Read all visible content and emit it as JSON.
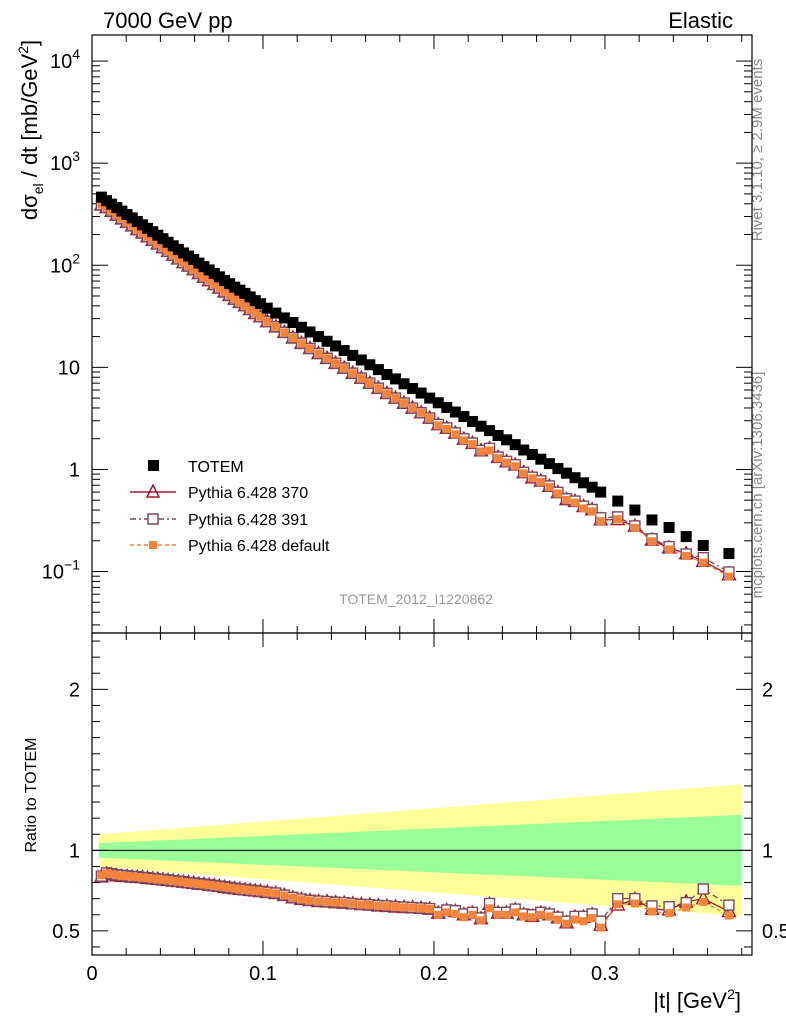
{
  "header": {
    "left": "7000 GeV pp",
    "right": "Elastic"
  },
  "side_labels": {
    "top": "Rivet 3.1.10, ≥ 2.9M events",
    "bottom": "mcplots.cern.ch [arXiv:1306.3436]"
  },
  "watermark": "TOTEM_2012_I1220862",
  "main_ylabel": {
    "prefix": "dσ",
    "sub": "el",
    "mid": " / dt [mb/GeV",
    "sup": "2",
    "end": "]"
  },
  "ratio_ylabel": "Ratio to TOTEM",
  "xlabel": {
    "main": "|t| [GeV",
    "sup": "2",
    "end": "]"
  },
  "legend": {
    "totem": "TOTEM",
    "p370": "Pythia 6.428 370",
    "p391": "Pythia 6.428 391",
    "pdef": "Pythia 6.428 default"
  },
  "colors": {
    "totem": "#000000",
    "p370": "#9b1b30",
    "p391": "#7b4a5e",
    "pdef": "#f4843c",
    "band_inner": "#99ff99",
    "band_outer": "#ffff99"
  },
  "chart_data": [
    {
      "type": "scatter",
      "yscale": "log",
      "xlim": [
        0,
        0.386
      ],
      "ylim": [
        0.025,
        18000
      ],
      "xlabel": "|t| [GeV2]",
      "ylabel": "dσel / dt [mb/GeV2]",
      "y_ticks": [
        "10^4",
        "10^3",
        "10^2",
        "10",
        "1",
        "10^-1"
      ],
      "series": [
        {
          "name": "TOTEM",
          "x": [
            0.0055,
            0.0085,
            0.0115,
            0.0145,
            0.0175,
            0.0205,
            0.0235,
            0.0265,
            0.0295,
            0.0325,
            0.0355,
            0.0385,
            0.0415,
            0.0445,
            0.0475,
            0.0505,
            0.0535,
            0.0565,
            0.0595,
            0.0625,
            0.0655,
            0.0685,
            0.0715,
            0.0745,
            0.0775,
            0.0805,
            0.0835,
            0.0865,
            0.0895,
            0.0925,
            0.0955,
            0.0985,
            0.1025,
            0.1075,
            0.1125,
            0.1175,
            0.1225,
            0.1275,
            0.1325,
            0.1375,
            0.1425,
            0.1475,
            0.1525,
            0.1575,
            0.1625,
            0.1675,
            0.1725,
            0.1775,
            0.1825,
            0.1875,
            0.1925,
            0.1975,
            0.2025,
            0.2075,
            0.2125,
            0.2175,
            0.2225,
            0.2275,
            0.2325,
            0.2375,
            0.2425,
            0.2475,
            0.2525,
            0.2575,
            0.2625,
            0.2675,
            0.2725,
            0.2775,
            0.2825,
            0.2875,
            0.2925,
            0.2975,
            0.3075,
            0.3175,
            0.3275,
            0.3375,
            0.3475,
            0.3575,
            0.3725
          ],
          "y": [
            465,
            429,
            397,
            367,
            339,
            314,
            291,
            268,
            249,
            230,
            213,
            197,
            182,
            168,
            155,
            143,
            132,
            123,
            114,
            105,
            97,
            90,
            83,
            77,
            71,
            66,
            61,
            57,
            53,
            49,
            45,
            42,
            38,
            34,
            30.5,
            27.5,
            24.7,
            22.2,
            20,
            18,
            16.2,
            14.6,
            13.1,
            11.8,
            10.6,
            9.5,
            8.5,
            7.7,
            6.9,
            6.2,
            5.6,
            5,
            4.5,
            4.05,
            3.65,
            3.3,
            2.95,
            2.65,
            2.4,
            2.15,
            1.95,
            1.75,
            1.55,
            1.4,
            1.26,
            1.14,
            1.02,
            0.92,
            0.83,
            0.74,
            0.67,
            0.6,
            0.49,
            0.4,
            0.32,
            0.27,
            0.22,
            0.18,
            0.15
          ]
        },
        {
          "name": "Pythia 6.428 370",
          "ratio": [
            0.835,
            0.853,
            0.848,
            0.842,
            0.838,
            0.837,
            0.834,
            0.832,
            0.83,
            0.826,
            0.823,
            0.82,
            0.816,
            0.813,
            0.809,
            0.806,
            0.802,
            0.799,
            0.795,
            0.79,
            0.788,
            0.784,
            0.78,
            0.776,
            0.77,
            0.766,
            0.762,
            0.758,
            0.755,
            0.751,
            0.748,
            0.744,
            0.738,
            0.732,
            0.72,
            0.705,
            0.695,
            0.688,
            0.682,
            0.68,
            0.675,
            0.672,
            0.668,
            0.663,
            0.66,
            0.655,
            0.652,
            0.648,
            0.645,
            0.643,
            0.64,
            0.635,
            0.61,
            0.625,
            0.62,
            0.6,
            0.61,
            0.575,
            0.665,
            0.61,
            0.61,
            0.63,
            0.6,
            0.59,
            0.61,
            0.6,
            0.58,
            0.55,
            0.585,
            0.585,
            0.6,
            0.535,
            0.66,
            0.695,
            0.635,
            0.63,
            0.68,
            0.7,
            0.62
          ]
        },
        {
          "name": "Pythia 6.428 391",
          "ratio": [
            0.84,
            0.86,
            0.855,
            0.848,
            0.845,
            0.842,
            0.838,
            0.836,
            0.832,
            0.83,
            0.826,
            0.822,
            0.82,
            0.816,
            0.812,
            0.808,
            0.805,
            0.8,
            0.797,
            0.793,
            0.79,
            0.786,
            0.782,
            0.778,
            0.774,
            0.77,
            0.765,
            0.76,
            0.757,
            0.753,
            0.75,
            0.746,
            0.74,
            0.735,
            0.722,
            0.708,
            0.698,
            0.69,
            0.685,
            0.682,
            0.678,
            0.675,
            0.67,
            0.665,
            0.662,
            0.658,
            0.655,
            0.65,
            0.648,
            0.645,
            0.642,
            0.638,
            0.615,
            0.63,
            0.625,
            0.605,
            0.615,
            0.58,
            0.67,
            0.615,
            0.615,
            0.635,
            0.605,
            0.6,
            0.615,
            0.605,
            0.585,
            0.56,
            0.59,
            0.59,
            0.605,
            0.56,
            0.7,
            0.7,
            0.655,
            0.65,
            0.675,
            0.76,
            0.66
          ]
        },
        {
          "name": "Pythia 6.428 default",
          "ratio": [
            0.845,
            0.858,
            0.852,
            0.845,
            0.842,
            0.84,
            0.836,
            0.834,
            0.831,
            0.828,
            0.824,
            0.821,
            0.818,
            0.815,
            0.811,
            0.807,
            0.803,
            0.799,
            0.796,
            0.792,
            0.789,
            0.785,
            0.781,
            0.777,
            0.772,
            0.768,
            0.763,
            0.759,
            0.756,
            0.752,
            0.749,
            0.745,
            0.739,
            0.733,
            0.72,
            0.706,
            0.696,
            0.689,
            0.683,
            0.681,
            0.676,
            0.673,
            0.669,
            0.664,
            0.661,
            0.656,
            0.653,
            0.649,
            0.646,
            0.644,
            0.641,
            0.636,
            0.6,
            0.615,
            0.605,
            0.585,
            0.6,
            0.565,
            0.64,
            0.6,
            0.6,
            0.615,
            0.59,
            0.585,
            0.6,
            0.59,
            0.57,
            0.545,
            0.57,
            0.56,
            0.58,
            0.52,
            0.665,
            0.67,
            0.62,
            0.61,
            0.645,
            0.68,
            0.595
          ]
        }
      ]
    },
    {
      "type": "line",
      "ylim": [
        0.35,
        2.35
      ],
      "xlim": [
        0,
        0.386
      ],
      "y_ticks": [
        "0.5",
        "1",
        "2"
      ],
      "x_ticks": [
        "0",
        "0.1",
        "0.2",
        "0.3"
      ],
      "ylabel": "Ratio to TOTEM",
      "band_inner": {
        "x0": 0.004,
        "x1": 0.38,
        "halfwidth_start": 0.045,
        "halfwidth_end": 0.22
      },
      "band_outer": {
        "x0": 0.004,
        "x1": 0.38,
        "halfwidth_start": 0.1,
        "halfwidth_end": 0.41
      }
    }
  ]
}
